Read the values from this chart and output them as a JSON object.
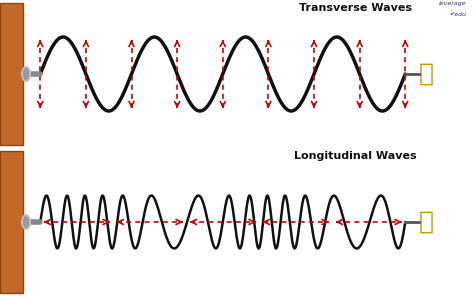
{
  "title_transverse": "Transverse Waves",
  "title_longitudinal": "Longitudinal Waves",
  "bg_color": "#ffffff",
  "wave_color": "#111111",
  "arrow_color": "#cc0000",
  "wall_color": "#c1692a",
  "wall_color2": "#8b4513",
  "bolt_color": "#aaaaaa",
  "text_color": "#111111",
  "fig_width": 4.74,
  "fig_height": 2.96,
  "dpi": 100,
  "logo_text": "leverage\nedu",
  "logo_color": "#1a3a8a",
  "hand_color": "#c8960c"
}
